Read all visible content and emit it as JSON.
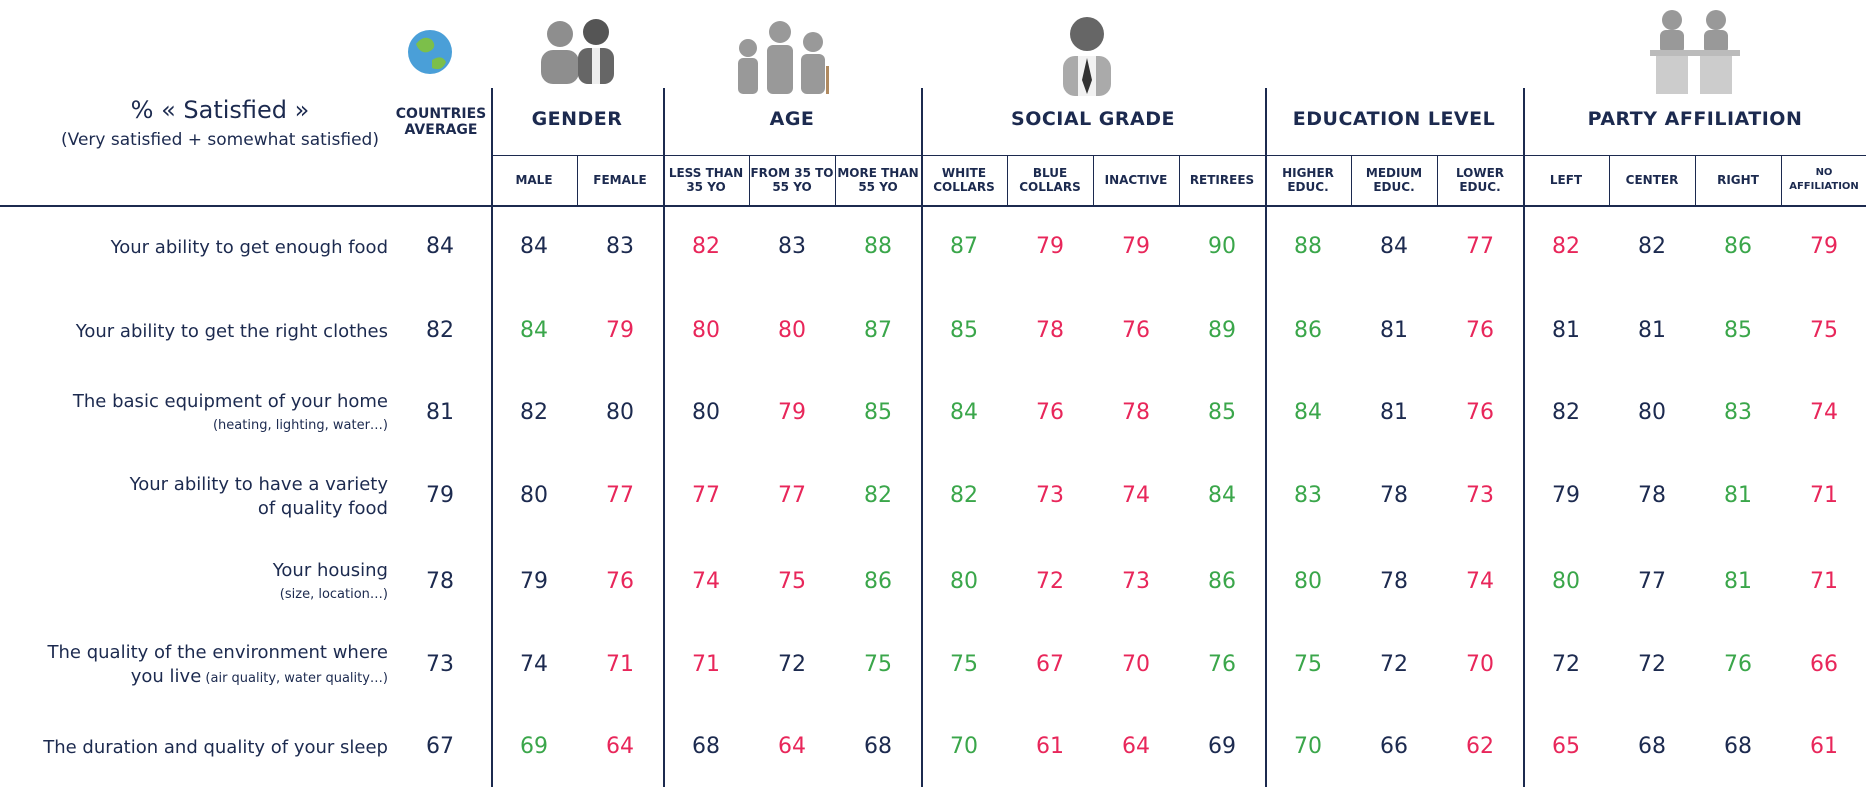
{
  "header": {
    "title": "% « Satisfied »",
    "subtitle": "(Very satisfied + somewhat satisfied)",
    "average": "COUNTRIES AVERAGE"
  },
  "groups": [
    {
      "name": "GENDER",
      "columns": [
        "MALE",
        "FEMALE"
      ]
    },
    {
      "name": "AGE",
      "columns": [
        "LESS THAN 35 YO",
        "FROM 35 TO 55 YO",
        "MORE THAN 55 YO"
      ]
    },
    {
      "name": "SOCIAL GRADE",
      "columns": [
        "WHITE COLLARS",
        "BLUE COLLARS",
        "INACTIVE",
        "RETIREES"
      ]
    },
    {
      "name": "EDUCATION LEVEL",
      "columns": [
        "HIGHER EDUC.",
        "MEDIUM EDUC.",
        "LOWER EDUC."
      ]
    },
    {
      "name": "PARTY AFFILIATION",
      "columns": [
        "LEFT",
        "CENTER",
        "RIGHT",
        "NO AFFILIATION"
      ]
    }
  ],
  "rows": [
    {
      "label": [
        "Your ability to get enough food"
      ],
      "average": 84,
      "values": [
        84,
        83,
        82,
        83,
        88,
        87,
        79,
        79,
        90,
        88,
        84,
        77,
        82,
        82,
        86,
        79
      ],
      "colors": [
        "#1c2a4f",
        "#1c2a4f",
        "#e8265a",
        "#1c2a4f",
        "#3aa64a",
        "#3aa64a",
        "#e8265a",
        "#e8265a",
        "#3aa64a",
        "#3aa64a",
        "#1c2a4f",
        "#e8265a",
        "#e8265a",
        "#1c2a4f",
        "#3aa64a",
        "#e8265a"
      ]
    },
    {
      "label": [
        "Your ability to get the right clothes"
      ],
      "average": 82,
      "values": [
        84,
        79,
        80,
        80,
        87,
        85,
        78,
        76,
        89,
        86,
        81,
        76,
        81,
        81,
        85,
        75
      ],
      "colors": [
        "#3aa64a",
        "#e8265a",
        "#e8265a",
        "#e8265a",
        "#3aa64a",
        "#3aa64a",
        "#e8265a",
        "#e8265a",
        "#3aa64a",
        "#3aa64a",
        "#1c2a4f",
        "#e8265a",
        "#1c2a4f",
        "#1c2a4f",
        "#3aa64a",
        "#e8265a"
      ]
    },
    {
      "label": [
        "The basic equipment of your home"
      ],
      "note": "(heating, lighting, water…)",
      "average": 81,
      "values": [
        82,
        80,
        80,
        79,
        85,
        84,
        76,
        78,
        85,
        84,
        81,
        76,
        82,
        80,
        83,
        74
      ],
      "colors": [
        "#1c2a4f",
        "#1c2a4f",
        "#1c2a4f",
        "#e8265a",
        "#3aa64a",
        "#3aa64a",
        "#e8265a",
        "#e8265a",
        "#3aa64a",
        "#3aa64a",
        "#1c2a4f",
        "#e8265a",
        "#1c2a4f",
        "#1c2a4f",
        "#3aa64a",
        "#e8265a"
      ]
    },
    {
      "label": [
        "Your ability to have a variety",
        "of quality food"
      ],
      "average": 79,
      "values": [
        80,
        77,
        77,
        77,
        82,
        82,
        73,
        74,
        84,
        83,
        78,
        73,
        79,
        78,
        81,
        71
      ],
      "colors": [
        "#1c2a4f",
        "#e8265a",
        "#e8265a",
        "#e8265a",
        "#3aa64a",
        "#3aa64a",
        "#e8265a",
        "#e8265a",
        "#3aa64a",
        "#3aa64a",
        "#1c2a4f",
        "#e8265a",
        "#1c2a4f",
        "#1c2a4f",
        "#3aa64a",
        "#e8265a"
      ]
    },
    {
      "label": [
        "Your housing"
      ],
      "note": "(size, location…)",
      "average": 78,
      "values": [
        79,
        76,
        74,
        75,
        86,
        80,
        72,
        73,
        86,
        80,
        78,
        74,
        80,
        77,
        81,
        71
      ],
      "colors": [
        "#1c2a4f",
        "#e8265a",
        "#e8265a",
        "#e8265a",
        "#3aa64a",
        "#3aa64a",
        "#e8265a",
        "#e8265a",
        "#3aa64a",
        "#3aa64a",
        "#1c2a4f",
        "#e8265a",
        "#3aa64a",
        "#1c2a4f",
        "#3aa64a",
        "#e8265a"
      ]
    },
    {
      "label": [
        "The quality of the environment where",
        "you live"
      ],
      "note": "(air quality, water quality…)",
      "average": 73,
      "values": [
        74,
        71,
        71,
        72,
        75,
        75,
        67,
        70,
        76,
        75,
        72,
        70,
        72,
        72,
        76,
        66
      ],
      "colors": [
        "#1c2a4f",
        "#e8265a",
        "#e8265a",
        "#1c2a4f",
        "#3aa64a",
        "#3aa64a",
        "#e8265a",
        "#e8265a",
        "#3aa64a",
        "#3aa64a",
        "#1c2a4f",
        "#e8265a",
        "#1c2a4f",
        "#1c2a4f",
        "#3aa64a",
        "#e8265a"
      ]
    },
    {
      "label": [
        "The duration and quality of your sleep"
      ],
      "average": 67,
      "values": [
        69,
        64,
        68,
        64,
        68,
        70,
        61,
        64,
        69,
        70,
        66,
        62,
        65,
        68,
        68,
        61
      ],
      "colors": [
        "#3aa64a",
        "#e8265a",
        "#1c2a4f",
        "#e8265a",
        "#1c2a4f",
        "#3aa64a",
        "#e8265a",
        "#e8265a",
        "#1c2a4f",
        "#3aa64a",
        "#1c2a4f",
        "#e8265a",
        "#e8265a",
        "#1c2a4f",
        "#1c2a4f",
        "#e8265a"
      ]
    }
  ]
}
